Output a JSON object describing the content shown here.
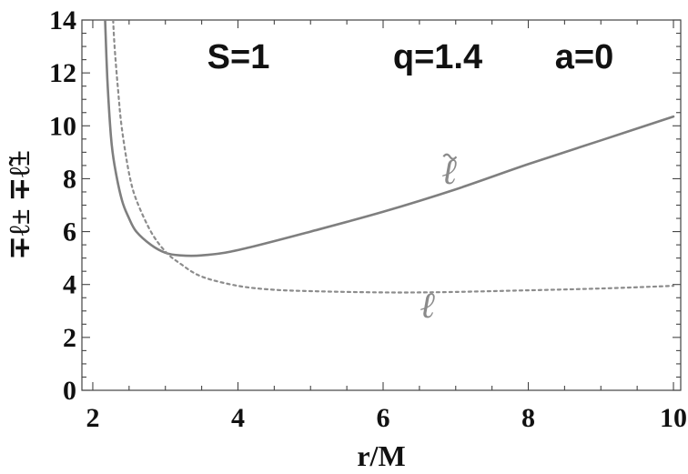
{
  "chart_data": {
    "type": "line",
    "xlabel": "r/M",
    "ylabel": "∓ℓ±  ∓ℓ̃±",
    "xlim": [
      1.85,
      10.1
    ],
    "ylim": [
      0,
      14
    ],
    "xticks": [
      2,
      4,
      6,
      8,
      10
    ],
    "yticks": [
      0,
      2,
      4,
      6,
      8,
      10,
      12,
      14
    ],
    "grid": false,
    "annotations": [
      "S=1",
      "q=1.4",
      "a=0"
    ],
    "series": [
      {
        "name": "ℓ̃",
        "style": "solid",
        "color": "#7f7f7f",
        "x": [
          2.17,
          2.2,
          2.25,
          2.3,
          2.4,
          2.5,
          2.6,
          2.8,
          3.0,
          3.2,
          3.5,
          4.0,
          5.0,
          6.0,
          7.0,
          8.0,
          9.0,
          10.0
        ],
        "y": [
          14.0,
          11.8,
          9.6,
          8.5,
          7.2,
          6.5,
          6.0,
          5.5,
          5.2,
          5.1,
          5.1,
          5.3,
          6.0,
          6.75,
          7.6,
          8.55,
          9.45,
          10.35
        ]
      },
      {
        "name": "ℓ",
        "style": "dotted",
        "color": "#8c8c8c",
        "x": [
          2.28,
          2.3,
          2.35,
          2.4,
          2.5,
          2.6,
          2.8,
          3.0,
          3.2,
          3.5,
          4.0,
          4.5,
          5.0,
          5.5,
          6.0,
          6.5,
          7.0,
          8.0,
          9.0,
          10.0
        ],
        "y": [
          14.0,
          13.0,
          11.3,
          9.9,
          8.2,
          7.2,
          6.0,
          5.25,
          4.8,
          4.3,
          3.95,
          3.8,
          3.75,
          3.72,
          3.7,
          3.7,
          3.72,
          3.78,
          3.85,
          3.95
        ]
      }
    ],
    "curve_labels": [
      {
        "text": "ℓ",
        "tilde": true,
        "x": 6.92,
        "y": 7.8
      },
      {
        "text": "ℓ",
        "tilde": false,
        "x": 6.62,
        "y": 2.75
      }
    ]
  }
}
